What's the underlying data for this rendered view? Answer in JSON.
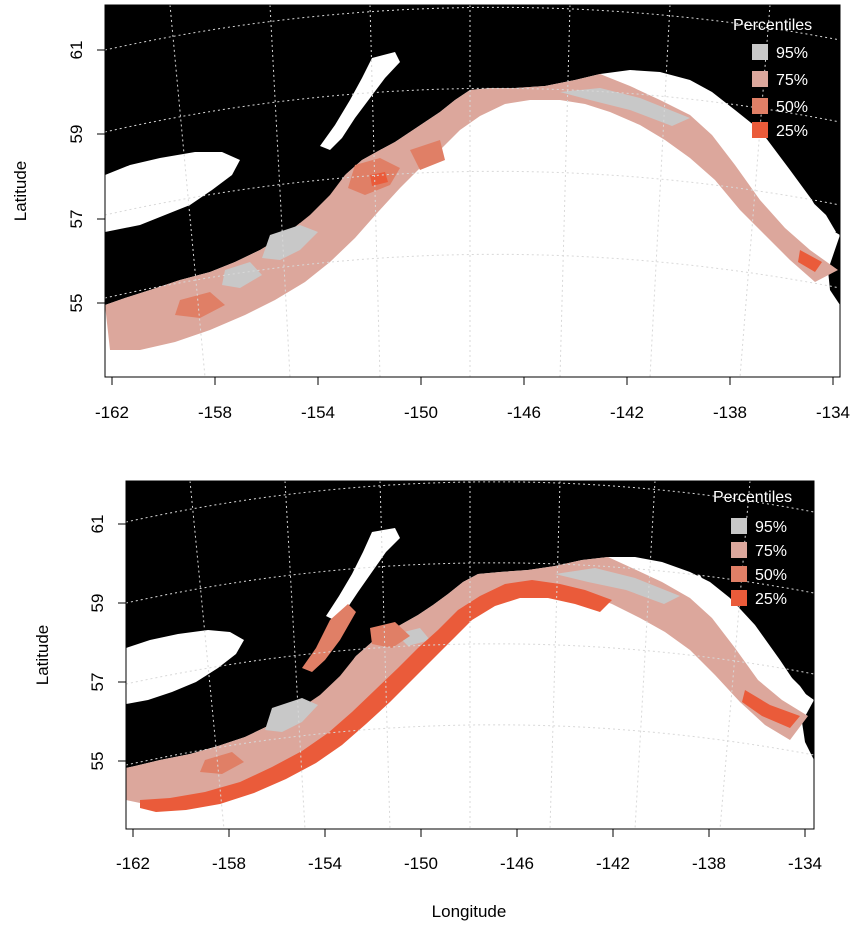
{
  "colors": {
    "land": "#000000",
    "ocean": "#ffffff",
    "p95": "#c8c8c8",
    "p75": "#dca79c",
    "p50": "#e07f66",
    "p25": "#ea5b3a"
  },
  "x_axis_label": "Longitude",
  "panels": [
    {
      "id": "top",
      "y_axis_label": "Latitude",
      "x_ticks": [
        "-162",
        "-158",
        "-154",
        "-150",
        "-146",
        "-142",
        "-138",
        "-134"
      ],
      "y_ticks": [
        "61",
        "59",
        "57",
        "55"
      ],
      "legend": {
        "title": "Percentiles",
        "items": [
          {
            "label": "95%",
            "color": "#c8c8c8"
          },
          {
            "label": "75%",
            "color": "#dca79c"
          },
          {
            "label": "50%",
            "color": "#e07f66"
          },
          {
            "label": "25%",
            "color": "#ea5b3a"
          }
        ]
      }
    },
    {
      "id": "bottom",
      "y_axis_label": "Latitude",
      "x_ticks": [
        "-162",
        "-158",
        "-154",
        "-150",
        "-146",
        "-142",
        "-138",
        "-134"
      ],
      "y_ticks": [
        "61",
        "59",
        "57",
        "55"
      ],
      "legend": {
        "title": "Percentiles",
        "items": [
          {
            "label": "95%",
            "color": "#c8c8c8"
          },
          {
            "label": "75%",
            "color": "#dca79c"
          },
          {
            "label": "50%",
            "color": "#e07f66"
          },
          {
            "label": "25%",
            "color": "#ea5b3a"
          }
        ]
      }
    }
  ]
}
